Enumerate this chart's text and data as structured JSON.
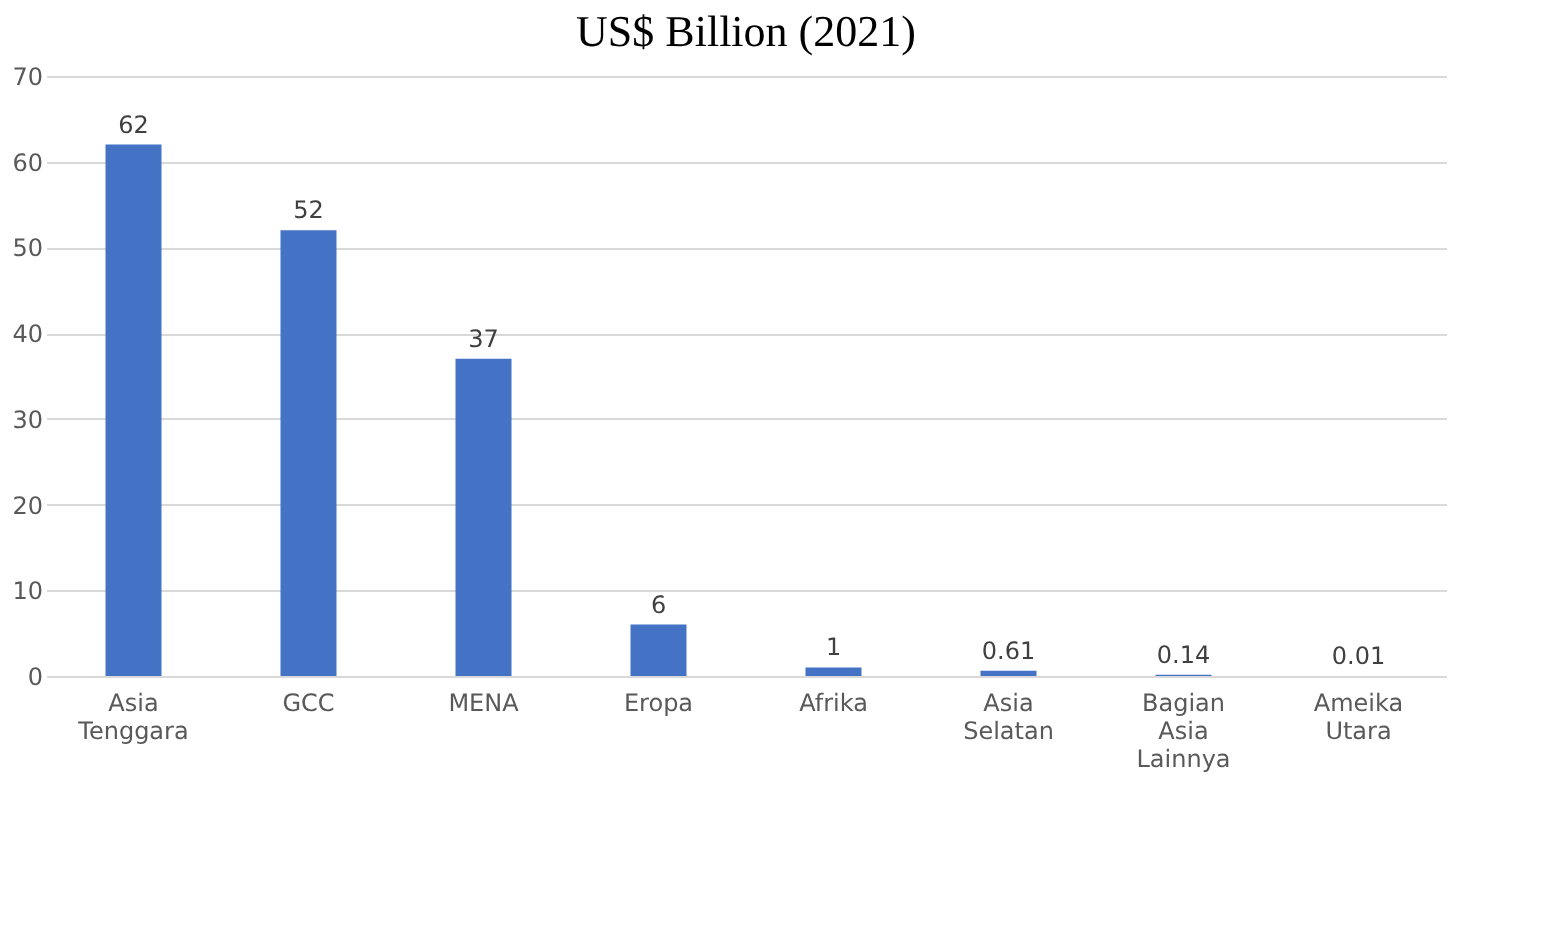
{
  "chart_data": {
    "type": "bar",
    "title": "US$ Billion (2021)",
    "categories": [
      "Asia Tenggara",
      "GCC",
      "MENA",
      "Eropa",
      "Afrika",
      "Asia Selatan",
      "Bagian Asia Lainnya",
      "Ameika Utara"
    ],
    "values": [
      62,
      52,
      37,
      6,
      1,
      0.61,
      0.14,
      0.01
    ],
    "color": "#4472c4",
    "ylim": [
      0,
      70
    ],
    "yticks": [
      0,
      10,
      20,
      30,
      40,
      50,
      60,
      70
    ],
    "grid": "y",
    "data_labels": true
  }
}
